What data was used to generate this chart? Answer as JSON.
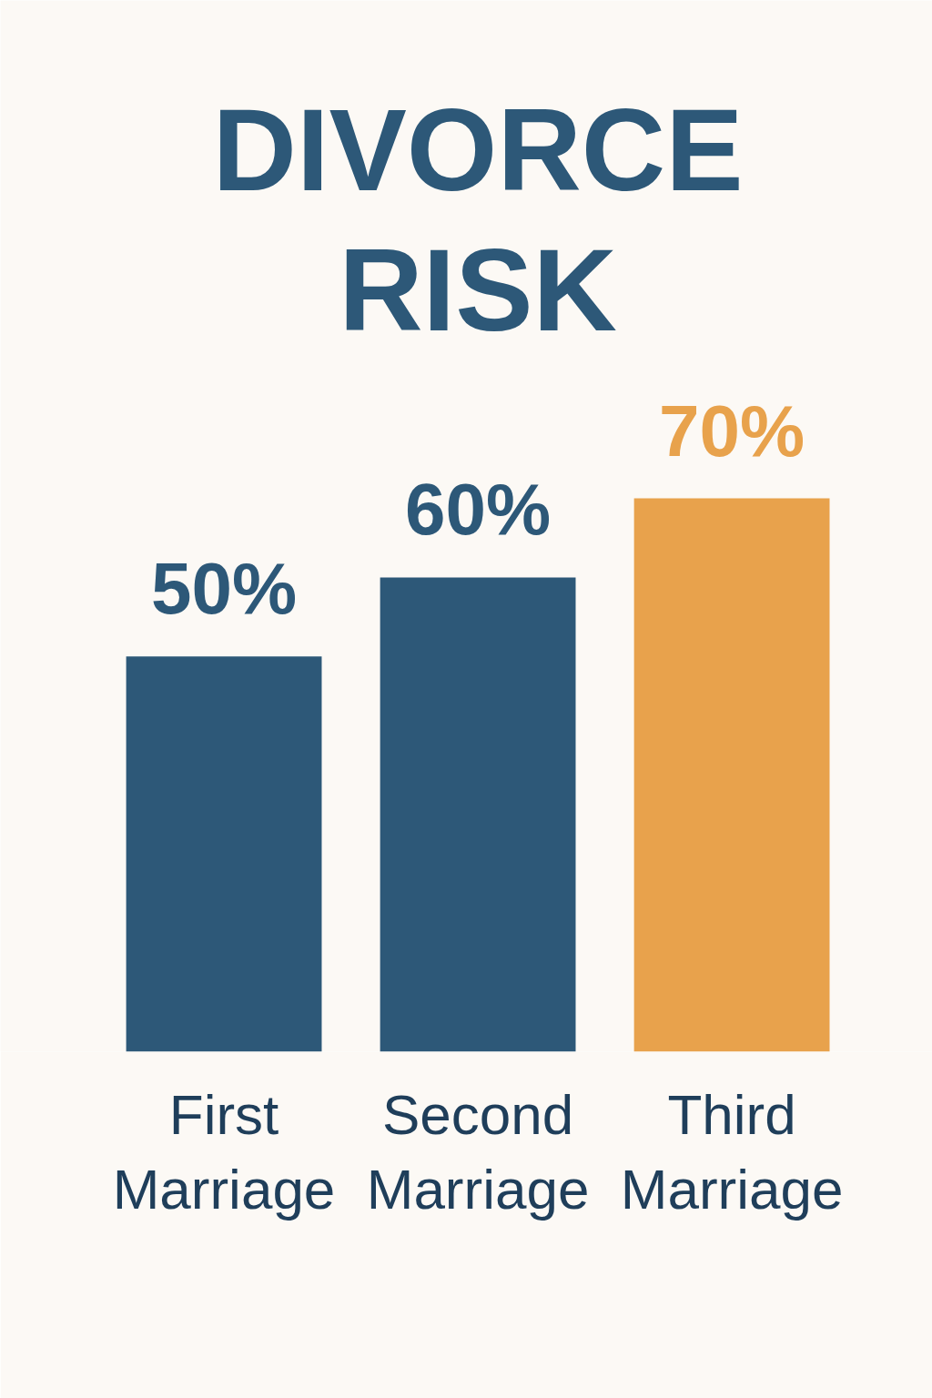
{
  "chart_data": {
    "type": "bar",
    "title": "DIVORCE RISK",
    "categories": [
      "First Marriage",
      "Second Marriage",
      "Third Marriage"
    ],
    "values": [
      50,
      60,
      70
    ],
    "colors": [
      "#2d5878",
      "#2d5878",
      "#e8a24c"
    ],
    "value_labels": [
      "50%",
      "60%",
      "70%"
    ]
  }
}
